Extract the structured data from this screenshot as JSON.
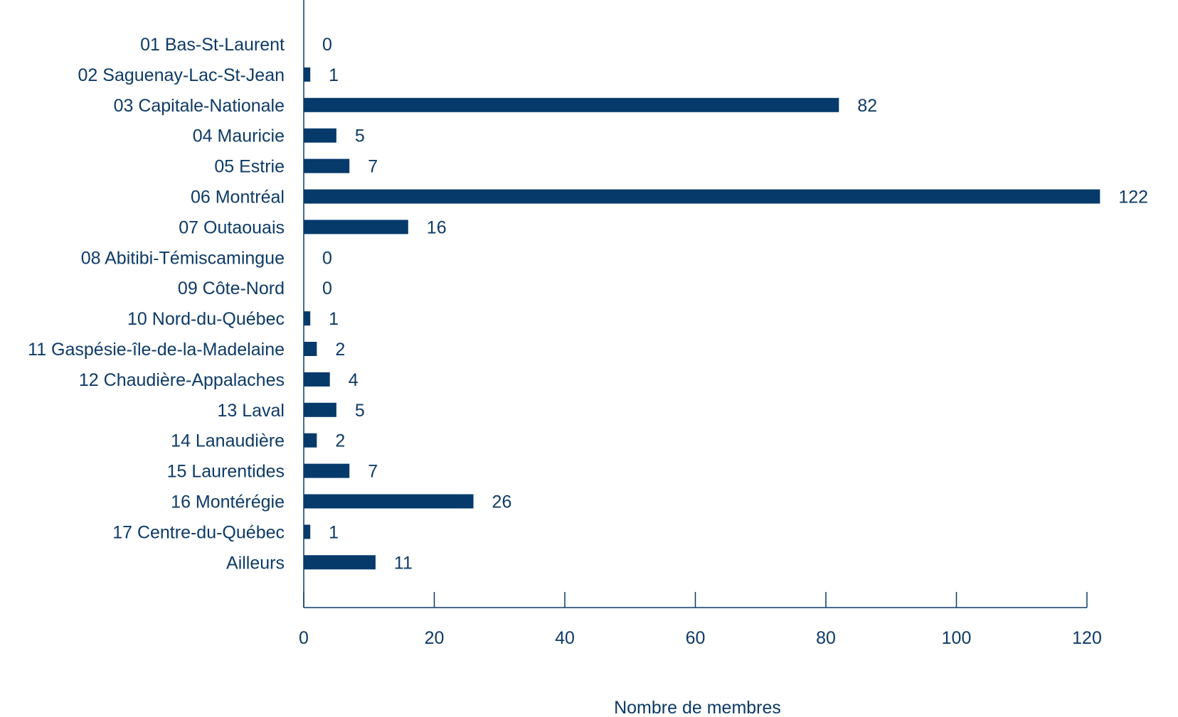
{
  "chart_data": {
    "type": "bar",
    "orientation": "horizontal",
    "categories": [
      "01 Bas-St-Laurent",
      "02 Saguenay-Lac-St-Jean",
      "03 Capitale-Nationale",
      "04 Mauricie",
      "05 Estrie",
      "06 Montréal",
      "07 Outaouais",
      "08 Abitibi-Témiscamingue",
      "09 Côte-Nord",
      "10 Nord-du-Québec",
      "11 Gaspésie-île-de-la-Madelaine",
      "12 Chaudière-Appalaches",
      "13 Laval",
      "14 Lanaudière",
      "15 Laurentides",
      "16 Montérégie",
      "17 Centre-du-Québec",
      "Ailleurs"
    ],
    "values": [
      0,
      1,
      82,
      5,
      7,
      122,
      16,
      0,
      0,
      1,
      2,
      4,
      5,
      2,
      7,
      26,
      1,
      11
    ],
    "xlabel": "Nombre de membres",
    "ylabel": "",
    "xlim": [
      0,
      120
    ],
    "xticks": [
      "0",
      "20",
      "40",
      "60",
      "80",
      "100",
      "120"
    ],
    "grid": false,
    "bar_color": "#053a6b",
    "text_color": "#0d3a66"
  }
}
